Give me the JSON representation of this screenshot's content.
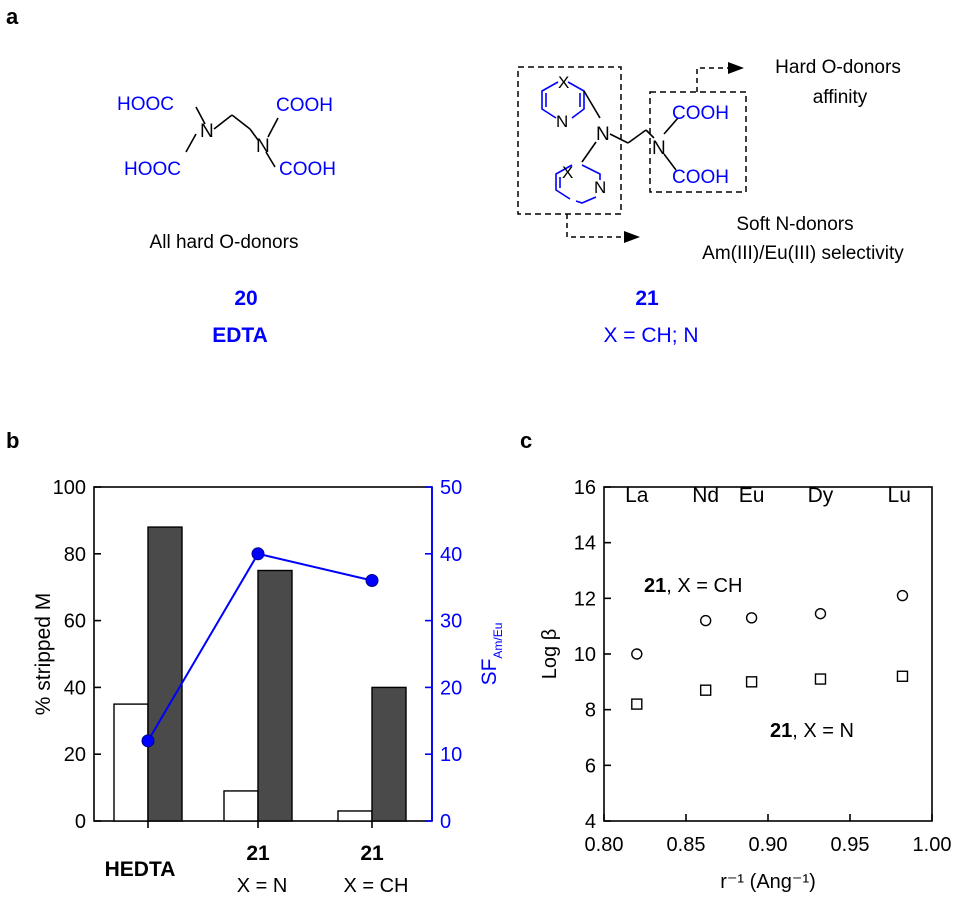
{
  "panel_a": {
    "label": "a",
    "edta": {
      "groups": [
        "HOOC",
        "HOOC",
        "COOH",
        "COOH"
      ],
      "nitrogen": "N",
      "caption": "All hard O-donors",
      "number": "20",
      "name": "EDTA"
    },
    "ligand21": {
      "ring_x": "X",
      "nitrogen": "N",
      "groups": [
        "COOH",
        "COOH"
      ],
      "annotation_o": [
        "Hard O-donors",
        "affinity"
      ],
      "annotation_n": [
        "Soft N-donors",
        "Am(III)/Eu(III) selectivity"
      ],
      "number": "21",
      "variants": "X = CH; N"
    },
    "colors": {
      "chem_blue": "#0000ff",
      "black": "#000000"
    }
  },
  "chart_data": [
    {
      "panel_label": "b",
      "type": "bar",
      "categories": [
        {
          "lines": [
            "HEDTA"
          ]
        },
        {
          "lines": [
            "21",
            "X = N"
          ]
        },
        {
          "lines": [
            "21",
            "X = CH"
          ]
        }
      ],
      "series": [
        {
          "values": [
            35,
            9,
            3
          ],
          "fill": "#ffffff"
        },
        {
          "values": [
            88,
            75,
            40
          ],
          "fill": "#4a4a4a"
        }
      ],
      "ylabel": "% stripped M",
      "ylim": [
        0,
        100
      ],
      "yticks": [
        0,
        20,
        40,
        60,
        80,
        100
      ],
      "y2_series": {
        "type": "line",
        "values": [
          12,
          40,
          36
        ],
        "color": "#0000ff"
      },
      "y2label": {
        "main": "SF",
        "sub": "Am/Eu"
      },
      "y2lim": [
        0,
        50
      ],
      "y2ticks": [
        0,
        10,
        20,
        30,
        40,
        50
      ],
      "grid": false
    },
    {
      "panel_label": "c",
      "type": "scatter",
      "xlabel": "r⁻¹ (Ang⁻¹)",
      "ylabel": "Log β",
      "xlim": [
        0.8,
        1.0
      ],
      "ylim": [
        4,
        16
      ],
      "xticks": [
        "0.80",
        "0.85",
        "0.90",
        "0.95",
        "1.00"
      ],
      "yticks": [
        4,
        6,
        8,
        10,
        12,
        14,
        16
      ],
      "top_labels": [
        {
          "text": "La",
          "x": 0.82
        },
        {
          "text": "Nd",
          "x": 0.862
        },
        {
          "text": "Eu",
          "x": 0.89
        },
        {
          "text": "Dy",
          "x": 0.932
        },
        {
          "text": "Lu",
          "x": 0.98
        }
      ],
      "series": [
        {
          "marker": "circle",
          "label_bold": "21",
          "label_rest": ", X = CH",
          "x": [
            0.82,
            0.862,
            0.89,
            0.932,
            0.982
          ],
          "y": [
            10.0,
            11.2,
            11.3,
            11.45,
            12.1
          ]
        },
        {
          "marker": "square",
          "label_bold": "21",
          "label_rest": ", X = N",
          "x": [
            0.82,
            0.862,
            0.89,
            0.932,
            0.982
          ],
          "y": [
            8.2,
            8.7,
            9.0,
            9.1,
            9.2
          ]
        }
      ],
      "grid": false
    }
  ]
}
